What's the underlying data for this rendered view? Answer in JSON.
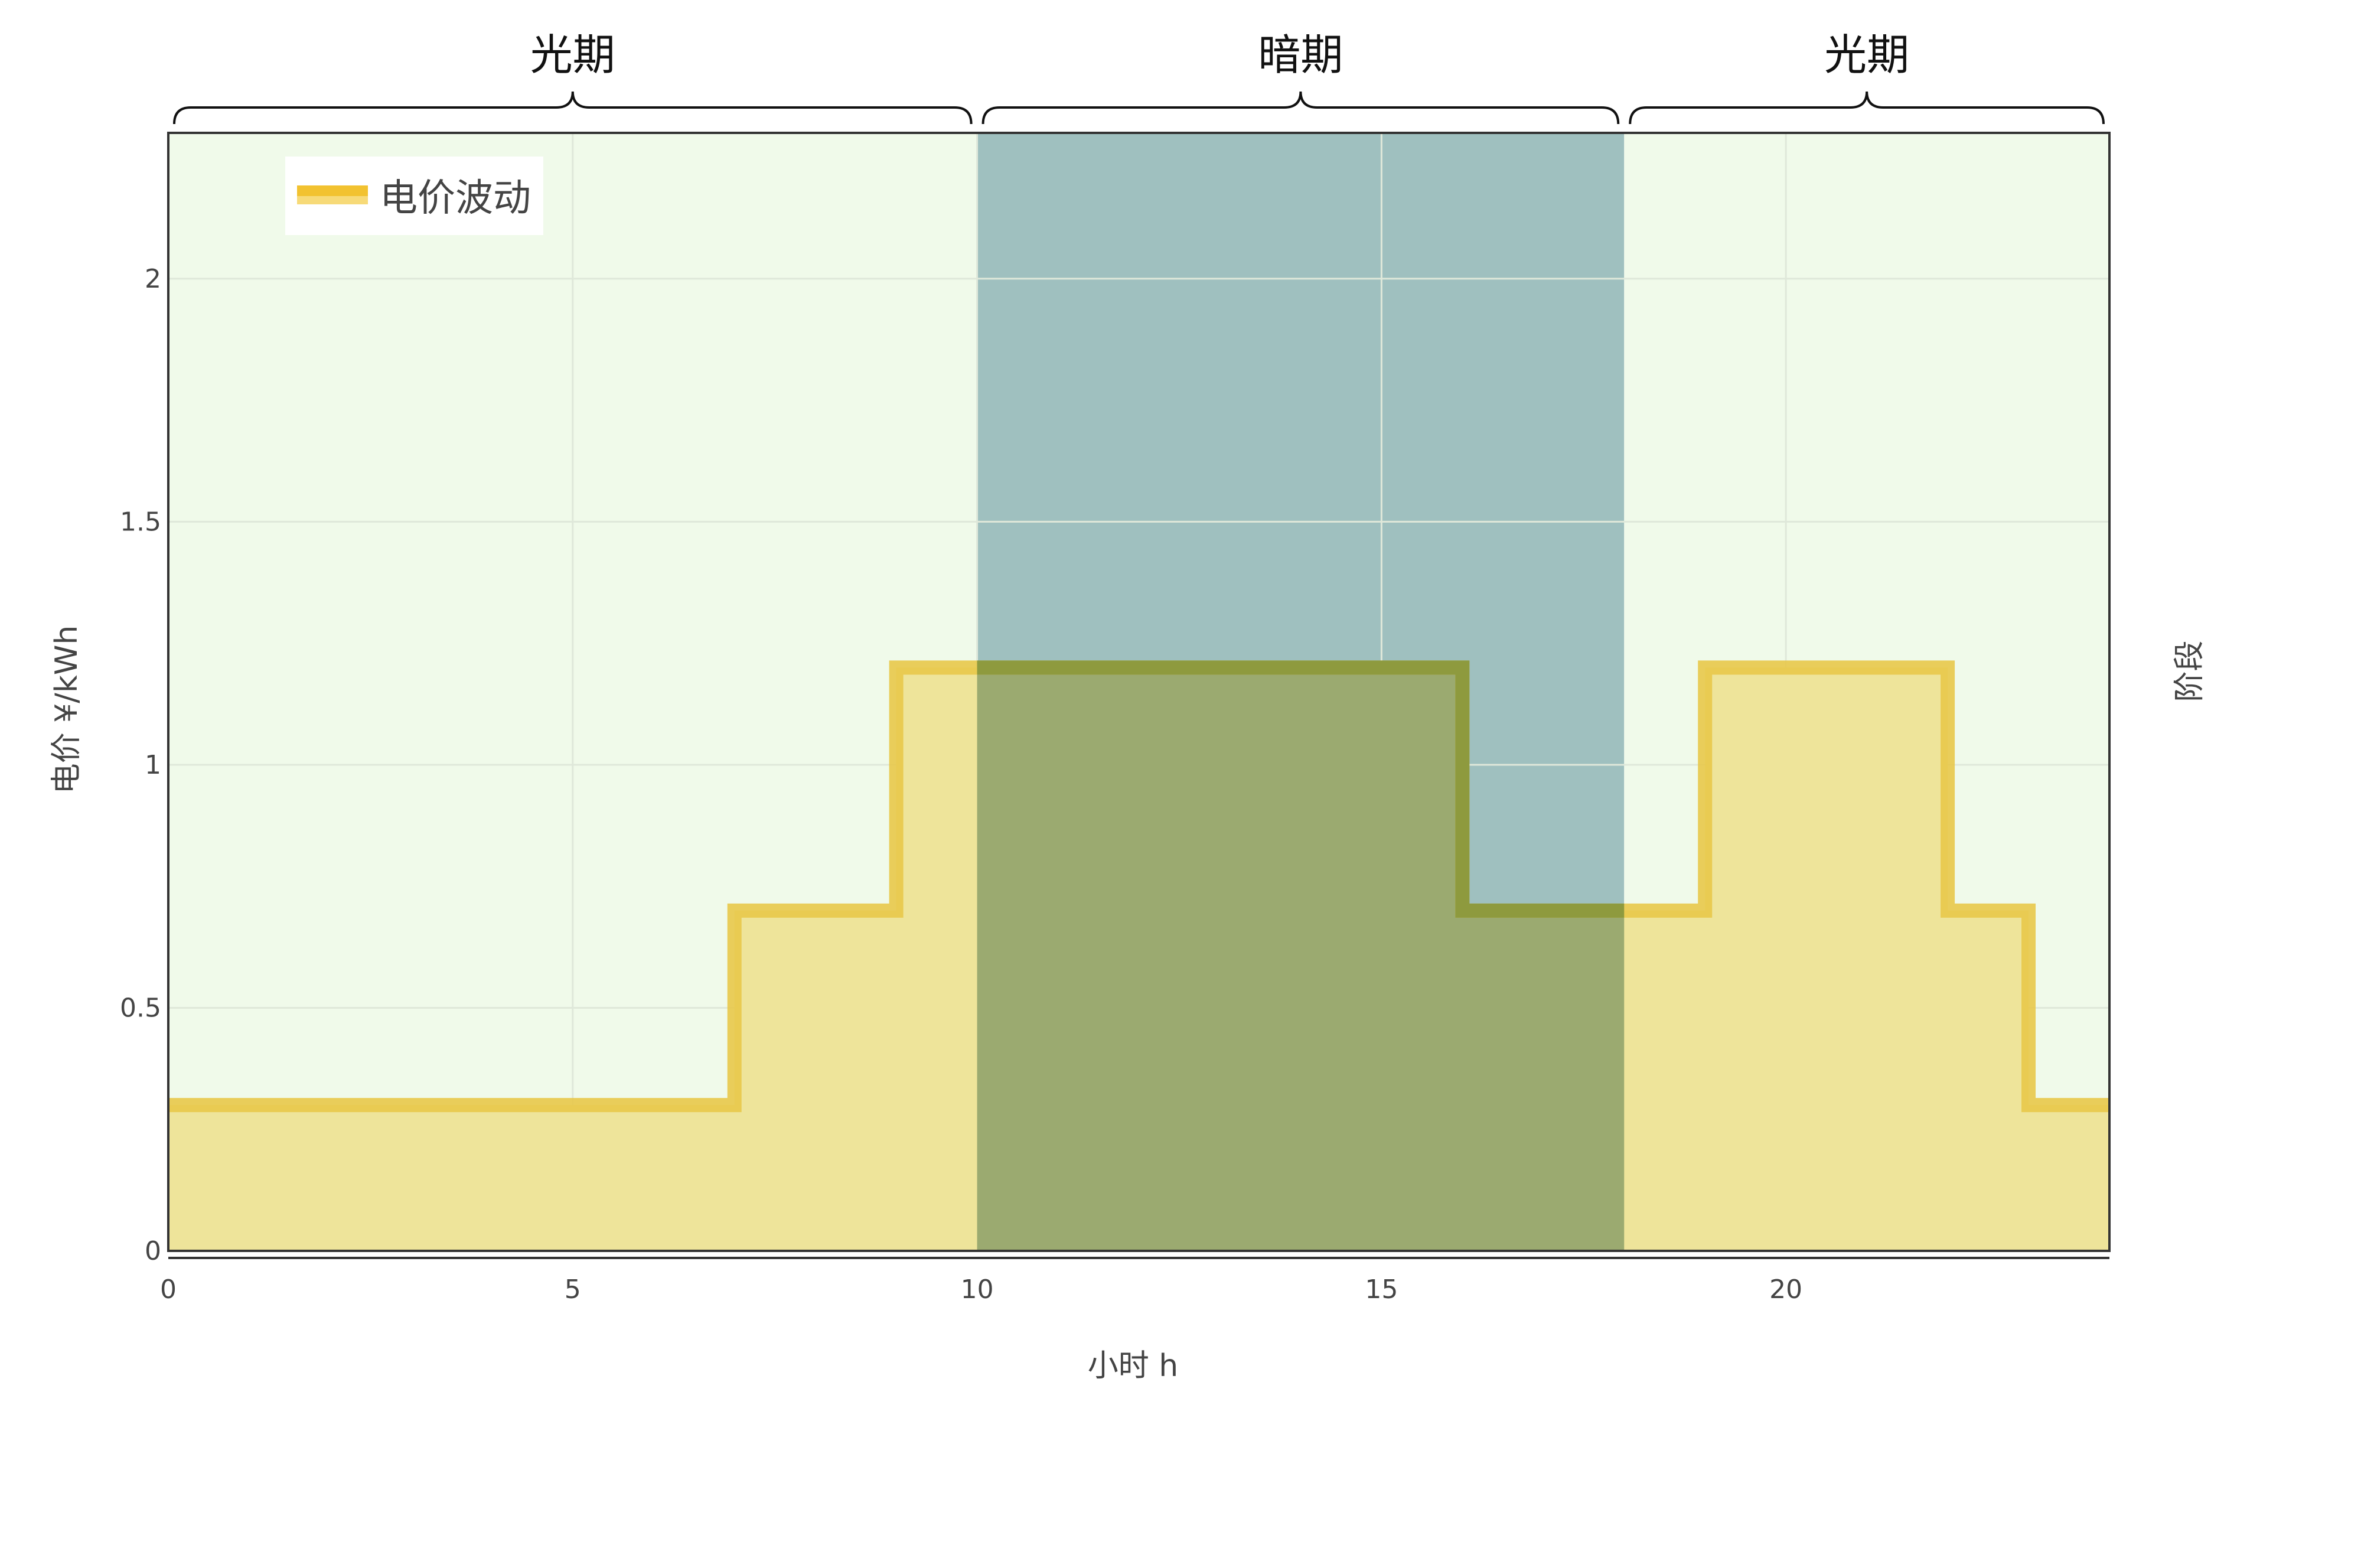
{
  "chart_data": {
    "type": "line",
    "shape": "step",
    "series": [
      {
        "name": "电价波动",
        "color": "#E8C84A",
        "fill_color": "#EEE49A",
        "x": [
          0,
          7,
          9,
          16,
          19,
          22,
          23,
          24
        ],
        "y": [
          0.3,
          0.7,
          1.2,
          0.7,
          1.2,
          0.7,
          0.3,
          0.3
        ]
      }
    ],
    "xlabel": "小时 h",
    "ylabel": "电价 ¥/kWh",
    "y2label": "阶段",
    "xlim": [
      0,
      24
    ],
    "ylim": [
      0,
      2.3
    ],
    "xticks": [
      0,
      5,
      10,
      15,
      20
    ],
    "yticks": [
      0,
      0.5,
      1,
      1.5,
      2
    ],
    "ytick_labels": [
      "0",
      "0.5",
      "1",
      "1.5",
      "2"
    ],
    "grid": true,
    "legend": {
      "position": "top-left"
    },
    "periods": [
      {
        "label": "光期",
        "start": 0,
        "end": 10,
        "color": "#F0FAEA"
      },
      {
        "label": "暗期",
        "start": 10,
        "end": 18,
        "color": "#9FC0BF"
      },
      {
        "label": "光期",
        "start": 18,
        "end": 24,
        "color": "#F0FAEA"
      }
    ],
    "overlap_color": "#9BAA70"
  }
}
